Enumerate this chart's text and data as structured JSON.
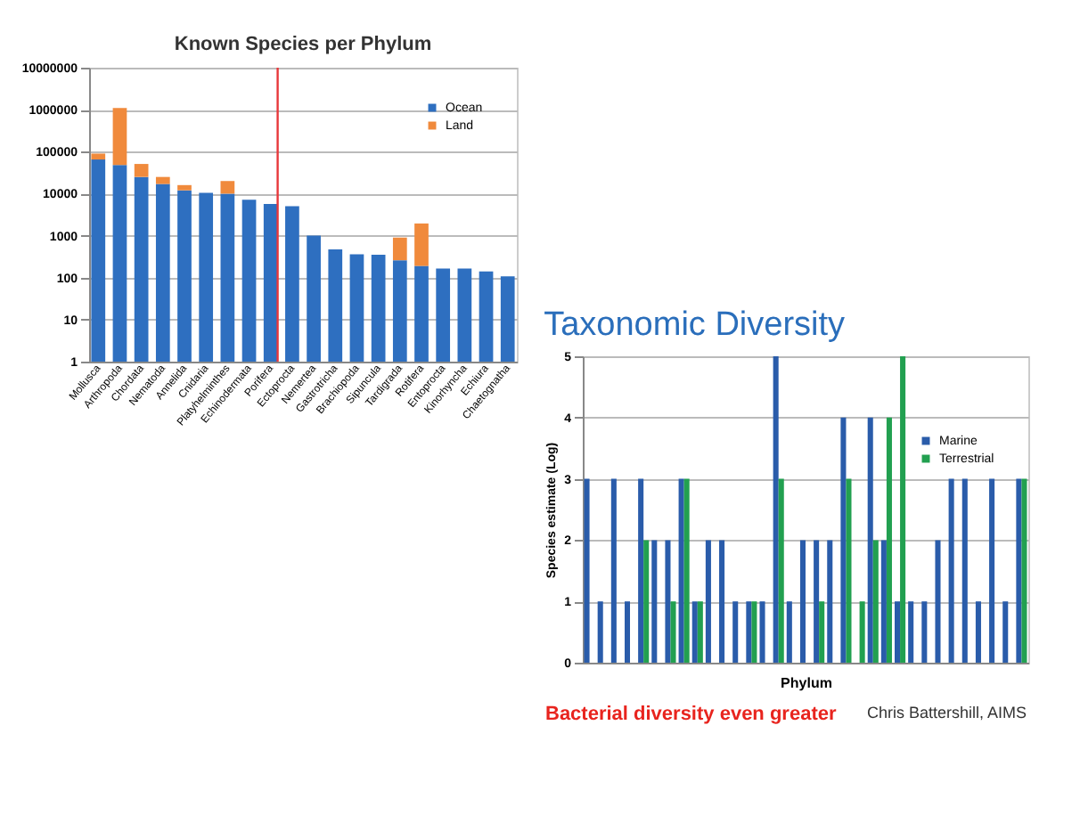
{
  "chart_data": [
    {
      "type": "bar",
      "title": "Known Species per Phylum",
      "stacked": true,
      "log": "y",
      "grid": "y",
      "legend": "top right",
      "categories": [
        "Mollusca",
        "Arthropoda",
        "Chordata",
        "Nematoda",
        "Annelida",
        "Cnidaria",
        "Platyhelminthes",
        "Echinodermata",
        "Porifera",
        "Ectoprocta",
        "Nemertea",
        "Gastrotricha",
        "Brachiopoda",
        "Sipuncula",
        "Tardigrada",
        "Rotifera",
        "Entoprocta",
        "Kinorhyncha",
        "Echiura",
        "Chaetognatha"
      ],
      "series": [
        {
          "name": "Ocean",
          "color": "#2e6fc0",
          "values": [
            65000,
            48000,
            25000,
            17000,
            12000,
            10500,
            10000,
            7200,
            5700,
            5000,
            1000,
            470,
            360,
            350,
            260,
            190,
            165,
            165,
            140,
            107
          ]
        },
        {
          "name": "Land",
          "color": "#f08a3c",
          "values": [
            25000,
            1050000,
            26000,
            8000,
            4000,
            null,
            10000,
            null,
            null,
            null,
            null,
            null,
            null,
            null,
            640,
            1760,
            null,
            null,
            null,
            null
          ]
        }
      ],
      "ylim": [
        1,
        10000000
      ],
      "yticks": [
        1,
        10,
        100,
        1000,
        10000,
        100000,
        1000000,
        10000000
      ],
      "ref_lines": [
        {
          "axis": "x",
          "value": "Porifera",
          "color": "#e8373a"
        }
      ]
    },
    {
      "type": "bar",
      "title": "Taxonomic Diversity",
      "xlabel": "Phylum",
      "ylabel": "Species estimate (Log)",
      "grid": "y",
      "legend": "top right",
      "categories": [
        null,
        null,
        null,
        null,
        null,
        null,
        null,
        null,
        null,
        null,
        null,
        null,
        null,
        null,
        null,
        null,
        null,
        null,
        null,
        null,
        null,
        null,
        null,
        null,
        null,
        null,
        null,
        null,
        null,
        null,
        null,
        null,
        null
      ],
      "series": [
        {
          "name": "Marine",
          "color": "#2a5caa",
          "values": [
            3,
            1,
            3,
            1,
            3,
            2,
            2,
            3,
            1,
            2,
            2,
            1,
            1,
            1,
            5,
            1,
            2,
            2,
            2,
            4,
            null,
            4,
            2,
            1,
            1,
            1,
            2,
            3,
            3,
            1,
            3,
            1,
            3
          ]
        },
        {
          "name": "Terrestrial",
          "color": "#22a050",
          "values": [
            null,
            null,
            null,
            null,
            2,
            null,
            1,
            3,
            1,
            null,
            null,
            null,
            1,
            null,
            3,
            null,
            null,
            1,
            null,
            3,
            1,
            2,
            4,
            5,
            null,
            null,
            null,
            null,
            null,
            null,
            null,
            null,
            3
          ]
        }
      ],
      "ylim": [
        0,
        5
      ],
      "yticks": [
        0,
        1,
        2,
        3,
        4,
        5
      ],
      "annotations": [
        "Bacterial diversity even greater",
        "Chris Battershill, AIMS"
      ]
    }
  ]
}
